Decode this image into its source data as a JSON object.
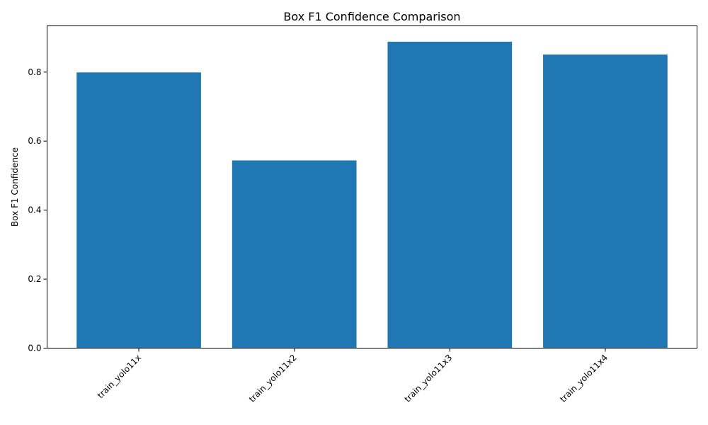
{
  "chart_data": {
    "type": "bar",
    "title": "Box F1 Confidence Comparison",
    "xlabel": "",
    "ylabel": "Box F1 Confidence",
    "categories": [
      "train_yolo11x",
      "train_yolo11x2",
      "train_yolo11x3",
      "train_yolo11x4"
    ],
    "values": [
      0.799,
      0.544,
      0.888,
      0.851
    ],
    "ylim": [
      0,
      0.934
    ],
    "yticks": [
      0.0,
      0.2,
      0.4,
      0.6,
      0.8
    ],
    "ytick_labels": [
      "0.0",
      "0.2",
      "0.4",
      "0.6",
      "0.8"
    ],
    "bar_color": "#1f77b4",
    "grid": false,
    "legend": "none"
  }
}
